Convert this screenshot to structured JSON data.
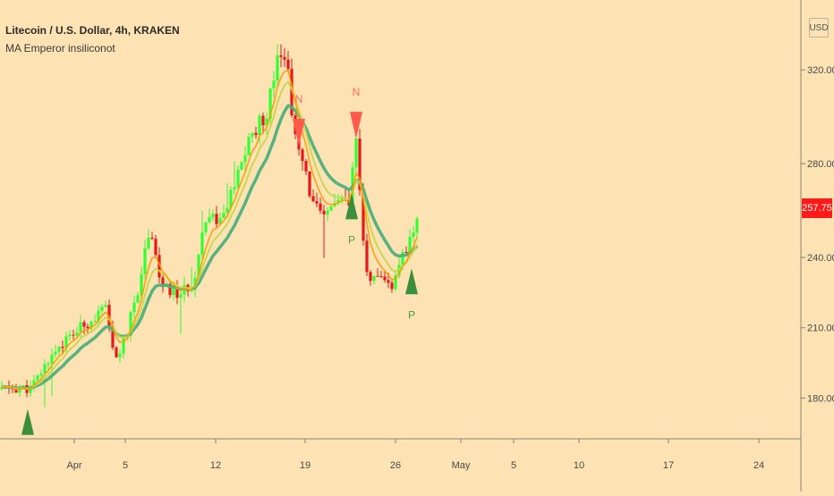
{
  "header": {
    "title": "Litecoin / U.S. Dollar, 4h, KRAKEN",
    "indicator": "MA Emperor insiliconot",
    "currency": "USD"
  },
  "colors": {
    "background": "#fde2b3",
    "bull": "#33ff33",
    "bear": "#e31a1a",
    "ema_fast": "#ff9900",
    "ema_mid": "#c9d64f",
    "ema_slow": "#4daf7c",
    "signal_long": "#3a8f3a",
    "signal_short": "#ff5a4a",
    "price_tag": "#ff1a1a"
  },
  "chart_data": {
    "type": "candlestick",
    "title": "Litecoin / U.S. Dollar, 4h, KRAKEN",
    "ylim": [
      163,
      346
    ],
    "x_ticks": [
      "Apr",
      "5",
      "12",
      "19",
      "26",
      "May",
      "5",
      "10",
      "17",
      "24"
    ],
    "y_ticks": [
      "180.00",
      "210.00",
      "240.00",
      "280.00",
      "320.00"
    ],
    "last_price": "257.75",
    "path": [
      [
        0,
        184
      ],
      [
        35,
        184
      ],
      [
        60,
        200
      ],
      [
        90,
        210
      ],
      [
        118,
        218
      ],
      [
        128,
        196
      ],
      [
        140,
        205
      ],
      [
        155,
        228
      ],
      [
        168,
        255
      ],
      [
        180,
        227
      ],
      [
        200,
        224
      ],
      [
        215,
        228
      ],
      [
        230,
        258
      ],
      [
        248,
        256
      ],
      [
        262,
        270
      ],
      [
        278,
        290
      ],
      [
        298,
        302
      ],
      [
        312,
        332
      ],
      [
        322,
        318
      ],
      [
        330,
        290
      ],
      [
        345,
        270
      ],
      [
        360,
        255
      ],
      [
        375,
        265
      ],
      [
        390,
        262
      ],
      [
        398,
        290
      ],
      [
        408,
        234
      ],
      [
        420,
        230
      ],
      [
        440,
        228
      ],
      [
        452,
        242
      ],
      [
        460,
        250
      ],
      [
        468,
        256
      ]
    ],
    "signals": [
      {
        "type": "long",
        "label": "",
        "x": 31,
        "price": 170
      },
      {
        "type": "short",
        "label": "N",
        "x": 334,
        "price": 293
      },
      {
        "type": "long",
        "label": "P",
        "x": 393,
        "price": 262
      },
      {
        "type": "short",
        "label": "N",
        "x": 398,
        "price": 296
      },
      {
        "type": "long",
        "label": "P",
        "x": 460,
        "price": 230
      }
    ]
  }
}
